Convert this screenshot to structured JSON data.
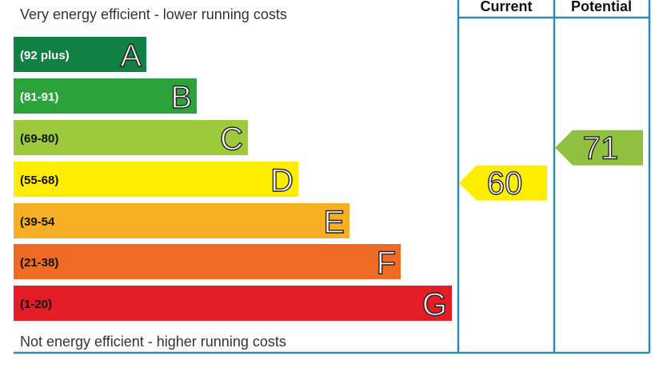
{
  "chart_data": {
    "type": "bar",
    "top_note": "Very energy efficient - lower running costs",
    "bottom_note": "Not energy efficient - higher running costs",
    "columns": [
      "Current",
      "Potential"
    ],
    "bands": [
      {
        "letter": "A",
        "range": "(92 plus)",
        "color": "#118043",
        "text_color": "#ffffff"
      },
      {
        "letter": "B",
        "range": "(81-91)",
        "color": "#2ba33a",
        "text_color": "#ffffff"
      },
      {
        "letter": "C",
        "range": "(69-80)",
        "color": "#9dca3c",
        "text_color": "#111111"
      },
      {
        "letter": "D",
        "range": "(55-68)",
        "color": "#ffed00",
        "text_color": "#111111"
      },
      {
        "letter": "E",
        "range": "(39-54",
        "color": "#f6ae22",
        "text_color": "#111111"
      },
      {
        "letter": "F",
        "range": "(21-38)",
        "color": "#ef6b24",
        "text_color": "#111111"
      },
      {
        "letter": "G",
        "range": "(1-20)",
        "color": "#e31d25",
        "text_color": "#111111"
      }
    ],
    "current": {
      "value": 60,
      "band": "D",
      "color": "#ffed00"
    },
    "potential": {
      "value": 71,
      "band": "C",
      "color": "#8fc13f"
    },
    "border_color": "#2a8bb5"
  }
}
